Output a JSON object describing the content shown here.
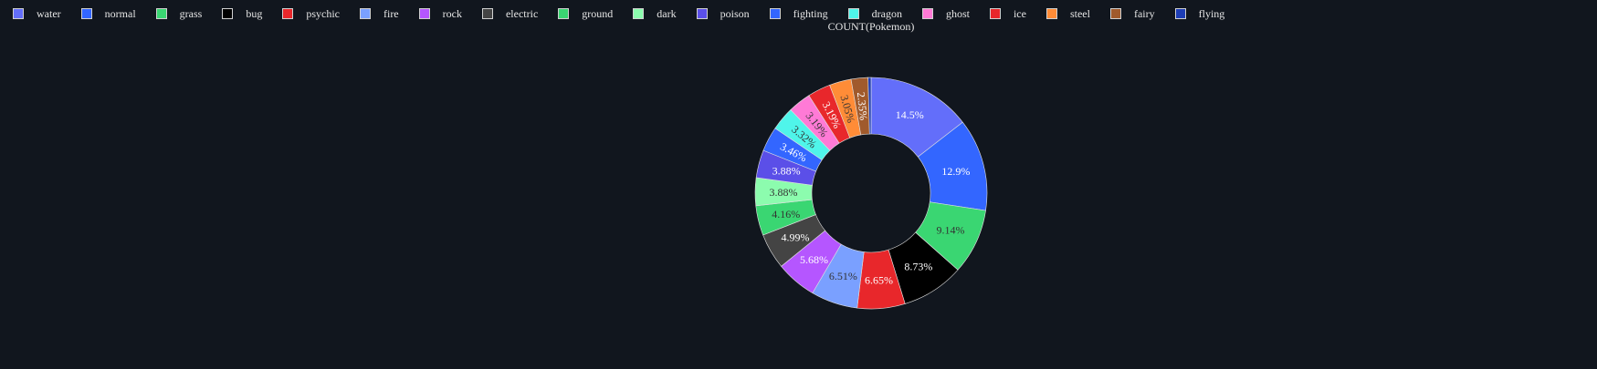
{
  "chart_data": {
    "type": "pie",
    "title": "COUNT(Pokemon)",
    "hole": true,
    "legend_position": "top-left",
    "slices": [
      {
        "name": "water",
        "percent": 14.5,
        "label": "14.5%",
        "color": "#636efa",
        "label_color": "#ffffff"
      },
      {
        "name": "normal",
        "percent": 12.9,
        "label": "12.9%",
        "color": "#3366ff",
        "label_color": "#ffffff"
      },
      {
        "name": "grass",
        "percent": 9.14,
        "label": "9.14%",
        "color": "#3ad672",
        "label_color": "#333333"
      },
      {
        "name": "bug",
        "percent": 8.73,
        "label": "8.73%",
        "color": "#000000",
        "label_color": "#ffffff"
      },
      {
        "name": "psychic",
        "percent": 6.65,
        "label": "6.65%",
        "color": "#e8272b",
        "label_color": "#ffffff"
      },
      {
        "name": "fire",
        "percent": 6.51,
        "label": "6.51%",
        "color": "#7aa0ff",
        "label_color": "#333333"
      },
      {
        "name": "rock",
        "percent": 5.68,
        "label": "5.68%",
        "color": "#b556ff",
        "label_color": "#ffffff"
      },
      {
        "name": "electric",
        "percent": 4.99,
        "label": "4.99%",
        "color": "#444444",
        "label_color": "#ffffff"
      },
      {
        "name": "ground",
        "percent": 4.16,
        "label": "4.16%",
        "color": "#3ad672",
        "label_color": "#333333"
      },
      {
        "name": "dark",
        "percent": 3.88,
        "label": "3.88%",
        "color": "#8cfcae",
        "label_color": "#333333"
      },
      {
        "name": "poison",
        "percent": 3.88,
        "label": "3.88%",
        "color": "#5b4fe8",
        "label_color": "#ffffff"
      },
      {
        "name": "fighting",
        "percent": 3.46,
        "label": "3.46%",
        "color": "#3366ff",
        "label_color": "#ffffff"
      },
      {
        "name": "dragon",
        "percent": 3.32,
        "label": "3.32%",
        "color": "#4ff5ea",
        "label_color": "#333333"
      },
      {
        "name": "ghost",
        "percent": 3.19,
        "label": "3.19%",
        "color": "#ff7ad6",
        "label_color": "#333333"
      },
      {
        "name": "ice",
        "percent": 3.19,
        "label": "3.19%",
        "color": "#e8272b",
        "label_color": "#ffffff"
      },
      {
        "name": "steel",
        "percent": 3.05,
        "label": "3.05%",
        "color": "#ff8c37",
        "label_color": "#333333"
      },
      {
        "name": "fairy",
        "percent": 2.35,
        "label": "2.35%",
        "color": "#a05a2c",
        "label_color": "#ffffff"
      },
      {
        "name": "flying",
        "percent": 0.42,
        "label": "",
        "color": "#1d3db5",
        "label_color": "#ffffff"
      }
    ]
  }
}
